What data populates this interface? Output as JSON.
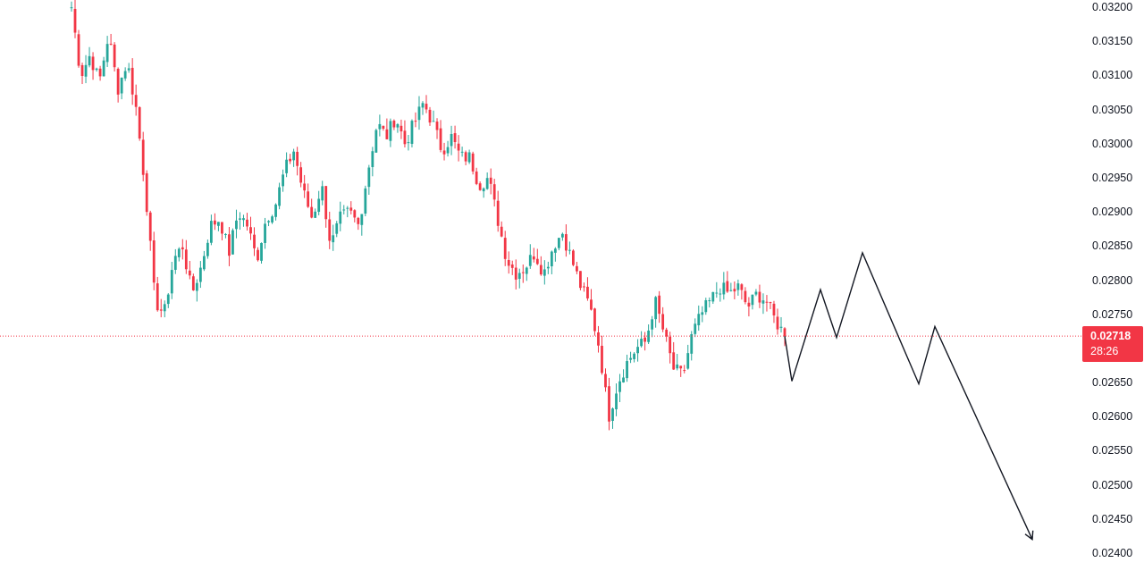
{
  "chart_data": {
    "type": "candlestick",
    "ylim": [
      0.024,
      0.032
    ],
    "y_ticks": [
      "0.03200",
      "0.03150",
      "0.03100",
      "0.03050",
      "0.03000",
      "0.02950",
      "0.02900",
      "0.02850",
      "0.02800",
      "0.02750",
      "0.02700",
      "0.02650",
      "0.02600",
      "0.02550",
      "0.02500",
      "0.02450",
      "0.02400"
    ],
    "last_price": "0.02718",
    "countdown": "28:26",
    "colors": {
      "up": "#26a69a",
      "down": "#f23645",
      "projection": "#131722",
      "price_line": "#f23645"
    },
    "price_path": [
      0.032,
      0.031,
      0.0313,
      0.0309,
      0.0316,
      0.0308,
      0.0312,
      0.0305,
      0.0293,
      0.0277,
      0.0275,
      0.0283,
      0.0285,
      0.0278,
      0.0282,
      0.0288,
      0.0289,
      0.0284,
      0.029,
      0.0288,
      0.0283,
      0.0289,
      0.0291,
      0.0296,
      0.0299,
      0.0293,
      0.0289,
      0.0294,
      0.0285,
      0.0289,
      0.029,
      0.0288,
      0.0296,
      0.0303,
      0.0301,
      0.0304,
      0.03,
      0.0303,
      0.0306,
      0.0303,
      0.0299,
      0.0301,
      0.0298,
      0.0298,
      0.0294,
      0.0295,
      0.0289,
      0.0283,
      0.0281,
      0.0282,
      0.0284,
      0.0281,
      0.0285,
      0.0287,
      0.0283,
      0.0279,
      0.0276,
      0.027,
      0.026,
      0.0265,
      0.0268,
      0.027,
      0.0271,
      0.0277,
      0.0272,
      0.0267,
      0.0266,
      0.0272,
      0.0275,
      0.0277,
      0.0279,
      0.0278,
      0.0279,
      0.0276,
      0.0278,
      0.0277,
      0.0274,
      0.0272
    ],
    "projection": [
      0.02718,
      0.02652,
      0.02786,
      0.02716,
      0.0284,
      0.02648,
      0.02732,
      0.0242
    ]
  }
}
